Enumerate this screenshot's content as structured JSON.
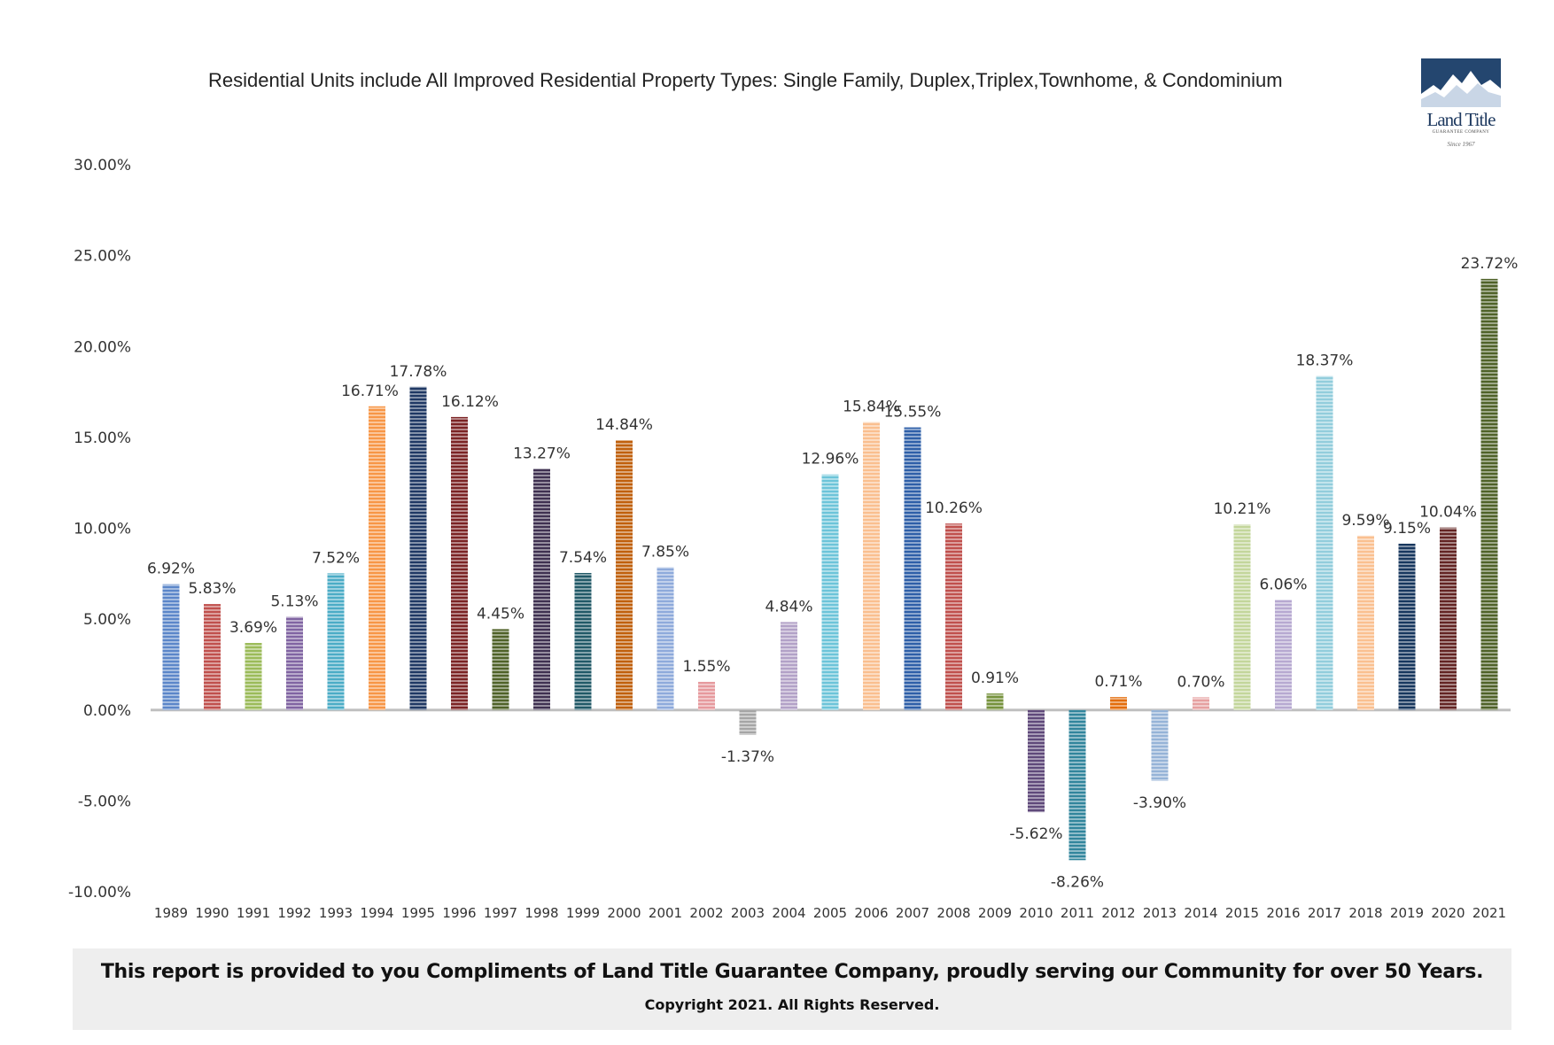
{
  "subtitle": "Residential Units include All Improved Residential Property Types: Single Family, Duplex,Triplex,Townhome, & Condominium",
  "logo": {
    "brand": "Land Title",
    "company": "GUARANTEE COMPANY",
    "since": "Since 1967"
  },
  "footer": {
    "main": "This report is provided to you Compliments of Land Title Guarantee Company, proudly serving our Community for  over 50 Years.",
    "copyright": "Copyright 2021.  All Rights Reserved."
  },
  "chart_data": {
    "type": "bar",
    "title": "",
    "xlabel": "",
    "ylabel": "",
    "ylim": [
      -10,
      30
    ],
    "yticks": [
      30,
      25,
      20,
      15,
      10,
      5,
      0,
      -5,
      -10
    ],
    "ytick_labels": [
      "30.00%",
      "25.00%",
      "20.00%",
      "15.00%",
      "10.00%",
      "5.00%",
      "0.00%",
      "-5.00%",
      "-10.00%"
    ],
    "grid": false,
    "categories": [
      "1989",
      "1990",
      "1991",
      "1992",
      "1993",
      "1994",
      "1995",
      "1996",
      "1997",
      "1998",
      "1999",
      "2000",
      "2001",
      "2002",
      "2003",
      "2004",
      "2005",
      "2006",
      "2007",
      "2008",
      "2009",
      "2010",
      "2011",
      "2012",
      "2013",
      "2014",
      "2015",
      "2016",
      "2017",
      "2018",
      "2019",
      "2020",
      "2021"
    ],
    "values": [
      6.92,
      5.83,
      3.69,
      5.13,
      7.52,
      16.71,
      17.78,
      16.12,
      4.45,
      13.27,
      7.54,
      14.84,
      7.85,
      1.55,
      -1.37,
      4.84,
      12.96,
      15.84,
      15.55,
      10.26,
      0.91,
      -5.62,
      -8.26,
      0.71,
      -3.9,
      0.7,
      10.21,
      6.06,
      18.37,
      9.59,
      9.15,
      10.04,
      23.72
    ],
    "labels": [
      "6.92%",
      "5.83%",
      "3.69%",
      "5.13%",
      "7.52%",
      "16.71%",
      "17.78%",
      "16.12%",
      "4.45%",
      "13.27%",
      "7.54%",
      "14.84%",
      "7.85%",
      "1.55%",
      "-1.37%",
      "4.84%",
      "12.96%",
      "15.84%",
      "15.55%",
      "10.26%",
      "0.91%",
      "-5.62%",
      "-8.26%",
      "0.71%",
      "-3.90%",
      "0.70%",
      "10.21%",
      "6.06%",
      "18.37%",
      "9.59%",
      "9.15%",
      "10.04%",
      "23.72%"
    ],
    "colors": [
      "#5b86c9",
      "#c0504d",
      "#9bbb59",
      "#8064a2",
      "#4bacc6",
      "#f79646",
      "#1f3864",
      "#7b2324",
      "#4f6228",
      "#3f3151",
      "#215967",
      "#c0600c",
      "#8eaadb",
      "#e6999d",
      "#a5a5a5",
      "#b2a1c7",
      "#6cc4d9",
      "#fabf8f",
      "#2e5fa8",
      "#c0504d",
      "#76923c",
      "#5f497a",
      "#31859c",
      "#e36c0a",
      "#95b3d7",
      "#e6a0a0",
      "#c3d69b",
      "#b7a9d1",
      "#92cddc",
      "#fac090",
      "#17375e",
      "#632423",
      "#4f6228"
    ]
  }
}
